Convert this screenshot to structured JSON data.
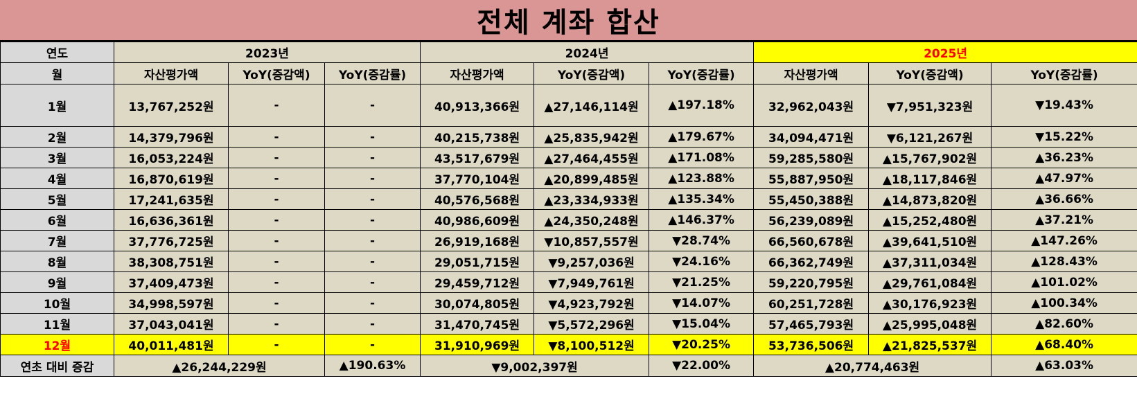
{
  "title": "전체 계좌 합산",
  "header": {
    "year_label": "연도",
    "month_label": "월",
    "years": [
      "2023년",
      "2024년",
      "2025년"
    ],
    "col_value": "자산평가액",
    "col_amount": "YoY(증감액)",
    "col_rate": "YoY(증감률)"
  },
  "rows": [
    {
      "month": "1월",
      "v2023": "13,767,252원",
      "a2023": "-",
      "r2023": "-",
      "v2024": "40,913,366원",
      "a2024": "▲27,146,114원",
      "r2024": "▲197.18%",
      "v2025": "32,962,043원",
      "a2025": "▼7,951,323원",
      "r2025": "▼19.43%"
    },
    {
      "month": "2월",
      "v2023": "14,379,796원",
      "a2023": "-",
      "r2023": "-",
      "v2024": "40,215,738원",
      "a2024": "▲25,835,942원",
      "r2024": "▲179.67%",
      "v2025": "34,094,471원",
      "a2025": "▼6,121,267원",
      "r2025": "▼15.22%"
    },
    {
      "month": "3월",
      "v2023": "16,053,224원",
      "a2023": "-",
      "r2023": "-",
      "v2024": "43,517,679원",
      "a2024": "▲27,464,455원",
      "r2024": "▲171.08%",
      "v2025": "59,285,580원",
      "a2025": "▲15,767,902원",
      "r2025": "▲36.23%"
    },
    {
      "month": "4월",
      "v2023": "16,870,619원",
      "a2023": "-",
      "r2023": "-",
      "v2024": "37,770,104원",
      "a2024": "▲20,899,485원",
      "r2024": "▲123.88%",
      "v2025": "55,887,950원",
      "a2025": "▲18,117,846원",
      "r2025": "▲47.97%"
    },
    {
      "month": "5월",
      "v2023": "17,241,635원",
      "a2023": "-",
      "r2023": "-",
      "v2024": "40,576,568원",
      "a2024": "▲23,334,933원",
      "r2024": "▲135.34%",
      "v2025": "55,450,388원",
      "a2025": "▲14,873,820원",
      "r2025": "▲36.66%"
    },
    {
      "month": "6월",
      "v2023": "16,636,361원",
      "a2023": "-",
      "r2023": "-",
      "v2024": "40,986,609원",
      "a2024": "▲24,350,248원",
      "r2024": "▲146.37%",
      "v2025": "56,239,089원",
      "a2025": "▲15,252,480원",
      "r2025": "▲37.21%"
    },
    {
      "month": "7월",
      "v2023": "37,776,725원",
      "a2023": "-",
      "r2023": "-",
      "v2024": "26,919,168원",
      "a2024": "▼10,857,557원",
      "r2024": "▼28.74%",
      "v2025": "66,560,678원",
      "a2025": "▲39,641,510원",
      "r2025": "▲147.26%"
    },
    {
      "month": "8월",
      "v2023": "38,308,751원",
      "a2023": "-",
      "r2023": "-",
      "v2024": "29,051,715원",
      "a2024": "▼9,257,036원",
      "r2024": "▼24.16%",
      "v2025": "66,362,749원",
      "a2025": "▲37,311,034원",
      "r2025": "▲128.43%"
    },
    {
      "month": "9월",
      "v2023": "37,409,473원",
      "a2023": "-",
      "r2023": "-",
      "v2024": "29,459,712원",
      "a2024": "▼7,949,761원",
      "r2024": "▼21.25%",
      "v2025": "59,220,795원",
      "a2025": "▲29,761,084원",
      "r2025": "▲101.02%"
    },
    {
      "month": "10월",
      "v2023": "34,998,597원",
      "a2023": "-",
      "r2023": "-",
      "v2024": "30,074,805원",
      "a2024": "▼4,923,792원",
      "r2024": "▼14.07%",
      "v2025": "60,251,728원",
      "a2025": "▲30,176,923원",
      "r2025": "▲100.34%"
    },
    {
      "month": "11월",
      "v2023": "37,043,041원",
      "a2023": "-",
      "r2023": "-",
      "v2024": "31,470,745원",
      "a2024": "▼5,572,296원",
      "r2024": "▼15.04%",
      "v2025": "57,465,793원",
      "a2025": "▲25,995,048원",
      "r2025": "▲82.60%"
    },
    {
      "month": "12월",
      "v2023": "40,011,481원",
      "a2023": "-",
      "r2023": "-",
      "v2024": "31,910,969원",
      "a2024": "▼8,100,512원",
      "r2024": "▼20.25%",
      "v2025": "53,736,506원",
      "a2025": "▲21,825,537원",
      "r2025": "▲68.40%"
    }
  ],
  "total": {
    "label": "연초 대비 증감",
    "a2023": "▲26,244,229원",
    "r2023": "▲190.63%",
    "a2024": "▼9,002,397원",
    "r2024": "▼22.00%",
    "a2025": "▲20,774,463원",
    "r2025": "▲63.03%"
  },
  "colors": {
    "title_bg": "#d99694",
    "label_bg": "#d9d9d9",
    "cell_bg": "#ddd9c4",
    "highlight_bg": "#ffff00",
    "up": "#ff0000",
    "down": "#0000ff"
  }
}
